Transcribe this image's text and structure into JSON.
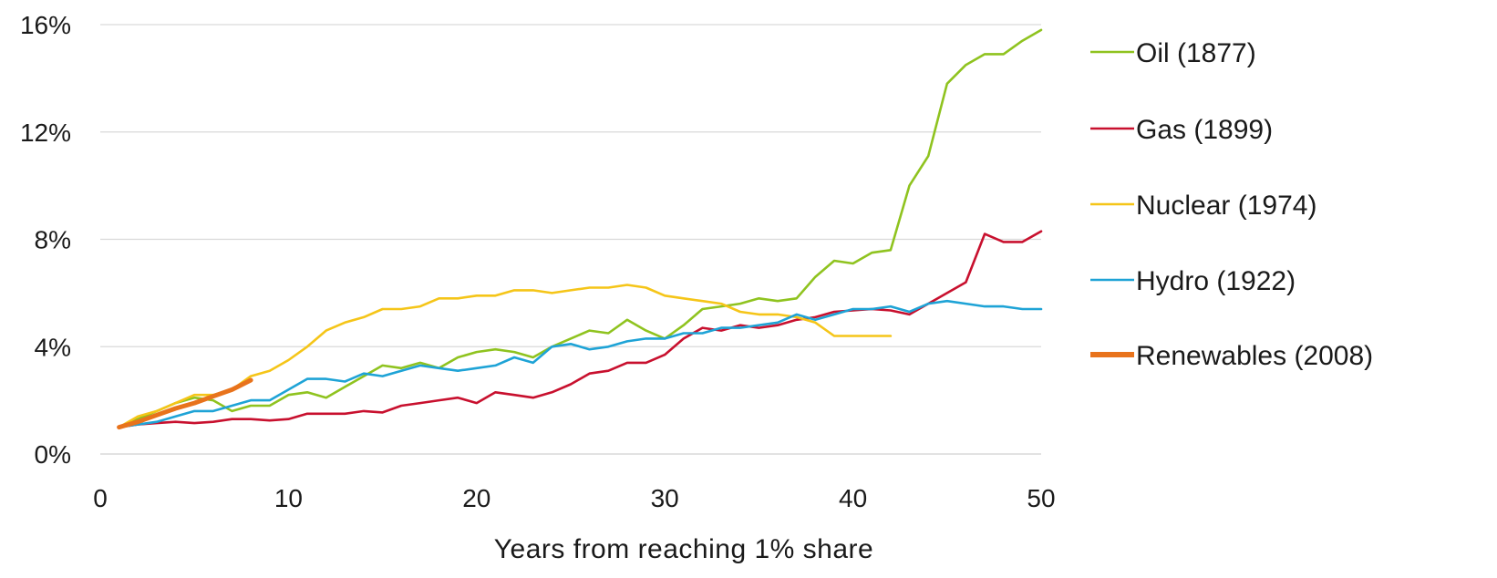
{
  "chart_data": {
    "type": "line",
    "xlabel": "Years from reaching 1% share",
    "ylabel": "",
    "xlim": [
      0,
      50
    ],
    "ylim": [
      0,
      16
    ],
    "x_ticks": [
      0,
      10,
      20,
      30,
      40,
      50
    ],
    "x_tick_labels": [
      "0",
      "10",
      "20",
      "30",
      "40",
      "50"
    ],
    "y_ticks": [
      0,
      4,
      8,
      12,
      16
    ],
    "y_tick_labels": [
      "0%",
      "4%",
      "8%",
      "12%",
      "16%"
    ],
    "grid": "horizontal",
    "legend_position": "right",
    "series": [
      {
        "name": "Oil (1877)",
        "color": "#8fc31f",
        "x": [
          1,
          2,
          3,
          4,
          5,
          6,
          7,
          8,
          9,
          10,
          11,
          12,
          13,
          14,
          15,
          16,
          17,
          18,
          19,
          20,
          21,
          22,
          23,
          24,
          25,
          26,
          27,
          28,
          29,
          30,
          31,
          32,
          33,
          34,
          35,
          36,
          37,
          38,
          39,
          40,
          41,
          42,
          43,
          44,
          45,
          46,
          47,
          48,
          49,
          50
        ],
        "y": [
          1.0,
          1.3,
          1.6,
          1.9,
          2.1,
          2.0,
          1.6,
          1.8,
          1.8,
          2.2,
          2.3,
          2.1,
          2.5,
          2.9,
          3.3,
          3.2,
          3.4,
          3.2,
          3.6,
          3.8,
          3.9,
          3.8,
          3.6,
          4.0,
          4.3,
          4.6,
          4.5,
          5.0,
          4.6,
          4.3,
          4.8,
          5.4,
          5.5,
          5.6,
          5.8,
          5.7,
          5.8,
          6.6,
          7.2,
          7.1,
          7.5,
          7.6,
          10.0,
          11.1,
          13.8,
          14.5,
          14.9,
          14.9,
          15.4,
          15.8
        ]
      },
      {
        "name": "Gas (1899)",
        "color": "#c8102e",
        "x": [
          1,
          2,
          3,
          4,
          5,
          6,
          7,
          8,
          9,
          10,
          11,
          12,
          13,
          14,
          15,
          16,
          17,
          18,
          19,
          20,
          21,
          22,
          23,
          24,
          25,
          26,
          27,
          28,
          29,
          30,
          31,
          32,
          33,
          34,
          35,
          36,
          37,
          38,
          39,
          40,
          41,
          42,
          43,
          44,
          45,
          46,
          47,
          48,
          49,
          50
        ],
        "y": [
          1.0,
          1.1,
          1.15,
          1.2,
          1.15,
          1.2,
          1.3,
          1.3,
          1.25,
          1.3,
          1.5,
          1.5,
          1.5,
          1.6,
          1.55,
          1.8,
          1.9,
          2.0,
          2.1,
          1.9,
          2.3,
          2.2,
          2.1,
          2.3,
          2.6,
          3.0,
          3.1,
          3.4,
          3.4,
          3.7,
          4.3,
          4.7,
          4.6,
          4.8,
          4.7,
          4.8,
          5.0,
          5.1,
          5.3,
          5.35,
          5.4,
          5.35,
          5.2,
          5.6,
          6.0,
          6.4,
          8.2,
          7.9,
          7.9,
          8.3
        ]
      },
      {
        "name": "Nuclear (1974)",
        "color": "#f5c518",
        "x": [
          1,
          2,
          3,
          4,
          5,
          6,
          7,
          8,
          9,
          10,
          11,
          12,
          13,
          14,
          15,
          16,
          17,
          18,
          19,
          20,
          21,
          22,
          23,
          24,
          25,
          26,
          27,
          28,
          29,
          30,
          31,
          32,
          33,
          34,
          35,
          36,
          37,
          38,
          39,
          40,
          41,
          42
        ],
        "y": [
          1.0,
          1.4,
          1.6,
          1.9,
          2.2,
          2.2,
          2.4,
          2.9,
          3.1,
          3.5,
          4.0,
          4.6,
          4.9,
          5.1,
          5.4,
          5.4,
          5.5,
          5.8,
          5.8,
          5.9,
          5.9,
          6.1,
          6.1,
          6.0,
          6.1,
          6.2,
          6.2,
          6.3,
          6.2,
          5.9,
          5.8,
          5.7,
          5.6,
          5.3,
          5.2,
          5.2,
          5.1,
          4.9,
          4.4,
          4.4,
          4.4,
          4.4
        ]
      },
      {
        "name": "Hydro (1922)",
        "color": "#1ea3d6",
        "x": [
          1,
          2,
          3,
          4,
          5,
          6,
          7,
          8,
          9,
          10,
          11,
          12,
          13,
          14,
          15,
          16,
          17,
          18,
          19,
          20,
          21,
          22,
          23,
          24,
          25,
          26,
          27,
          28,
          29,
          30,
          31,
          32,
          33,
          34,
          35,
          36,
          37,
          38,
          39,
          40,
          41,
          42,
          43,
          44,
          45,
          46,
          47,
          48,
          49,
          50
        ],
        "y": [
          1.0,
          1.1,
          1.2,
          1.4,
          1.6,
          1.6,
          1.8,
          2.0,
          2.0,
          2.4,
          2.8,
          2.8,
          2.7,
          3.0,
          2.9,
          3.1,
          3.3,
          3.2,
          3.1,
          3.2,
          3.3,
          3.6,
          3.4,
          4.0,
          4.1,
          3.9,
          4.0,
          4.2,
          4.3,
          4.3,
          4.5,
          4.5,
          4.7,
          4.7,
          4.8,
          4.9,
          5.2,
          5.0,
          5.2,
          5.4,
          5.4,
          5.5,
          5.3,
          5.6,
          5.7,
          5.6,
          5.5,
          5.5,
          5.4,
          5.4
        ]
      },
      {
        "name": "Renewables (2008)",
        "color": "#e8731c",
        "x": [
          1,
          2,
          3,
          4,
          5,
          6,
          7,
          8
        ],
        "y": [
          1.0,
          1.2,
          1.45,
          1.7,
          1.9,
          2.15,
          2.4,
          2.75
        ]
      }
    ]
  }
}
